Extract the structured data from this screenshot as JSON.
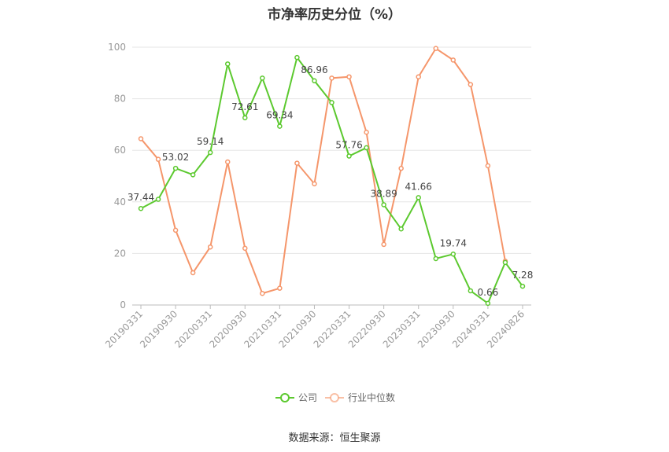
{
  "chart_data": {
    "type": "line",
    "title": "市净率历史分位（%）",
    "ylim": [
      0,
      100
    ],
    "yticks": [
      0,
      20,
      40,
      60,
      80,
      100
    ],
    "x": [
      "20190331",
      "20190630",
      "20190930",
      "20191231",
      "20200331",
      "20200630",
      "20200930",
      "20201231",
      "20210331",
      "20210630",
      "20210930",
      "20211231",
      "20220331",
      "20220630",
      "20220930",
      "20221231",
      "20230331",
      "20230630",
      "20230930",
      "20231231",
      "20240331",
      "20240630",
      "20240826"
    ],
    "xtick_labels": [
      "20190331",
      "20190930",
      "20200331",
      "20200930",
      "20210331",
      "20210930",
      "20220331",
      "20220930",
      "20230331",
      "20230930",
      "20240331",
      "20240826"
    ],
    "series": [
      {
        "name": "公司",
        "color": "#5cc92f",
        "values": [
          37.44,
          41,
          53.02,
          50.5,
          59.14,
          93.5,
          72.61,
          88,
          69.34,
          96,
          86.96,
          78.5,
          57.76,
          61,
          38.89,
          29.5,
          41.66,
          18,
          19.74,
          5.5,
          0.66,
          16.5,
          7.28
        ],
        "labels": {
          "0": "37.44",
          "2": "53.02",
          "4": "59.14",
          "6": "72.61",
          "8": "69.34",
          "10": "86.96",
          "12": "57.76",
          "14": "38.89",
          "16": "41.66",
          "18": "19.74",
          "20": "0.66",
          "22": "7.28"
        }
      },
      {
        "name": "行业中位数",
        "color": "#f5966b",
        "values": [
          64.5,
          56.5,
          29,
          12.5,
          22.5,
          55.5,
          22,
          4.5,
          6.5,
          55,
          47,
          88,
          88.5,
          67,
          23.5,
          53,
          88.5,
          99.5,
          95,
          85.5,
          54,
          17,
          null
        ]
      }
    ],
    "grid": true,
    "legend": "bottom-center"
  },
  "footer": {
    "source": "数据来源：恒生聚源"
  }
}
